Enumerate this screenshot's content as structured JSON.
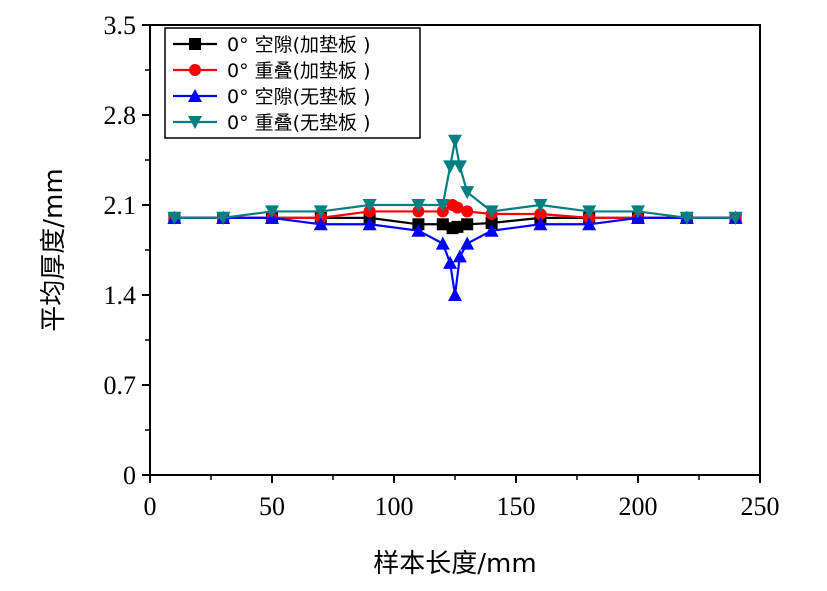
{
  "chart_data": {
    "type": "line",
    "title": "",
    "xlabel": "样本长度/mm",
    "ylabel": "平均厚度/mm",
    "xlim": [
      0,
      250
    ],
    "ylim": [
      0,
      3.5
    ],
    "x_ticks": [
      "0",
      "50",
      "100",
      "150",
      "200",
      "250"
    ],
    "y_ticks": [
      "0",
      "0.7",
      "1.4",
      "2.1",
      "2.8",
      "3.5"
    ],
    "grid": false,
    "legend_position": "top-left",
    "series": [
      {
        "name": "0° 空隙(加垫板 )",
        "color": "#000000",
        "marker": "square",
        "x": [
          10,
          30,
          50,
          70,
          90,
          110,
          120,
          124,
          126,
          130,
          140,
          160,
          180,
          200,
          220,
          240
        ],
        "y": [
          2.0,
          2.0,
          2.0,
          2.0,
          2.0,
          1.95,
          1.95,
          1.92,
          1.93,
          1.95,
          1.96,
          2.0,
          2.0,
          2.0,
          2.0,
          2.0
        ]
      },
      {
        "name": "0° 重叠(加垫板 )",
        "color": "#ff0000",
        "marker": "circle",
        "x": [
          10,
          30,
          50,
          70,
          90,
          110,
          120,
          124,
          126,
          130,
          140,
          160,
          180,
          200,
          220,
          240
        ],
        "y": [
          2.0,
          2.0,
          2.0,
          2.0,
          2.05,
          2.05,
          2.05,
          2.1,
          2.08,
          2.05,
          2.03,
          2.03,
          2.0,
          2.0,
          2.0,
          2.0
        ]
      },
      {
        "name": "0° 空隙(无垫板 )",
        "color": "#0000ff",
        "marker": "triangle-up",
        "x": [
          10,
          30,
          50,
          70,
          90,
          110,
          120,
          123,
          125,
          127,
          130,
          140,
          160,
          180,
          200,
          220,
          240
        ],
        "y": [
          2.0,
          2.0,
          2.0,
          1.95,
          1.95,
          1.9,
          1.8,
          1.65,
          1.4,
          1.7,
          1.8,
          1.9,
          1.95,
          1.95,
          2.0,
          2.0,
          2.0
        ]
      },
      {
        "name": "0° 重叠(无垫板 )",
        "color": "#008080",
        "marker": "triangle-down",
        "x": [
          10,
          30,
          50,
          70,
          90,
          110,
          120,
          123,
          125,
          127,
          130,
          140,
          160,
          180,
          200,
          220,
          240
        ],
        "y": [
          2.0,
          2.0,
          2.05,
          2.05,
          2.1,
          2.1,
          2.1,
          2.4,
          2.6,
          2.4,
          2.2,
          2.05,
          2.1,
          2.05,
          2.05,
          2.0,
          2.0
        ]
      }
    ]
  }
}
